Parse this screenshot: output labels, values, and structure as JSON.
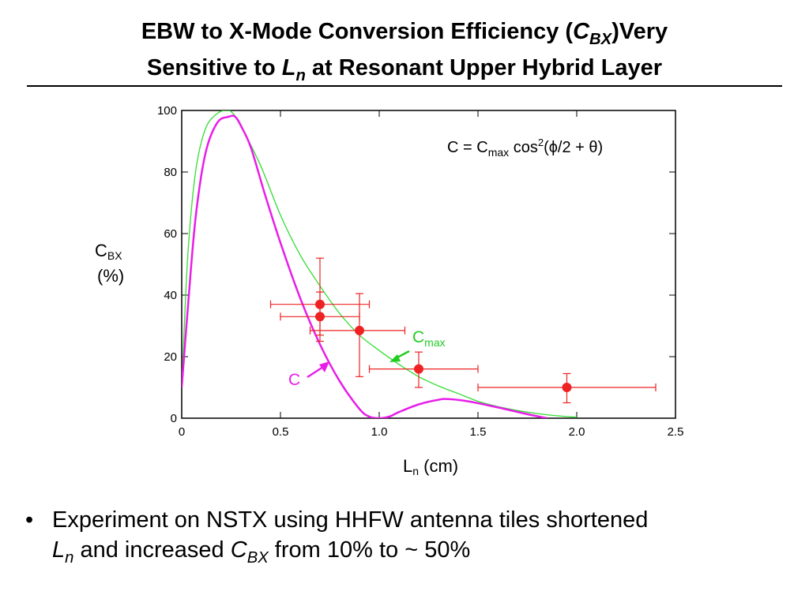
{
  "slide": {
    "title_part1": "EBW to X-Mode Conversion Efficiency (",
    "title_c": "C",
    "title_bx": "BX",
    "title_part2": ")Very",
    "title_line2_a": "Sensitive to ",
    "title_l": "L",
    "title_n": "n",
    "title_line2_b": " at Resonant Upper Hybrid Layer",
    "bullet_symbol": "•",
    "bullet_a": "Experiment on NSTX using HHFW antenna tiles shortened",
    "bullet_l": "L",
    "bullet_n": "n",
    "bullet_b": " and increased ",
    "bullet_c": "C",
    "bullet_bx": "BX",
    "bullet_c2": " from 10% to ~ 50%"
  },
  "chart_data": {
    "type": "line",
    "xlabel": "L",
    "xlabel_sub": "n",
    "xlabel_rest": " (cm)",
    "ylabel": "C",
    "ylabel_sub": "BX",
    "ylabel_line2": "(%)",
    "xlim": [
      0,
      2.5
    ],
    "ylim": [
      0,
      100
    ],
    "xticks": [
      0,
      0.5,
      1.0,
      1.5,
      2.0,
      2.5
    ],
    "xtick_labels": [
      "0",
      "0.5",
      "1.0",
      "1.5",
      "2.0",
      "2.5"
    ],
    "yticks": [
      0,
      20,
      40,
      60,
      80,
      100
    ],
    "ytick_labels": [
      "0",
      "20",
      "40",
      "60",
      "80",
      "100"
    ],
    "grid": false,
    "formula": {
      "lhs": "C = C",
      "max_sub": "max",
      "cos": " cos",
      "sup": "2",
      "rest": "(ϕ/2 + θ)"
    },
    "series": [
      {
        "name": "C",
        "label": "C",
        "color": "#e81ee8",
        "x": [
          0.0,
          0.03,
          0.07,
          0.12,
          0.18,
          0.24,
          0.27,
          0.3,
          0.35,
          0.42,
          0.5,
          0.6,
          0.7,
          0.8,
          0.9,
          0.95,
          1.0,
          1.05,
          1.1,
          1.2,
          1.3,
          1.35,
          1.45,
          1.55,
          1.65,
          1.75,
          1.85
        ],
        "y": [
          10,
          35,
          65,
          86,
          96,
          98,
          98,
          95,
          88,
          73,
          57,
          39,
          24,
          12,
          3,
          0.5,
          0,
          0.5,
          2,
          4.5,
          6,
          6.2,
          5.5,
          4.2,
          2.8,
          1.3,
          0
        ]
      },
      {
        "name": "C_max",
        "label": "C",
        "label_sub": "max",
        "color": "#33dd33",
        "x": [
          0.0,
          0.03,
          0.07,
          0.12,
          0.18,
          0.23,
          0.26,
          0.3,
          0.4,
          0.5,
          0.6,
          0.7,
          0.8,
          0.9,
          1.0,
          1.1,
          1.2,
          1.3,
          1.4,
          1.5,
          1.6,
          1.7,
          1.8,
          1.9,
          2.0
        ],
        "y": [
          10,
          52,
          80,
          94,
          99,
          100,
          99,
          95,
          82,
          66,
          53,
          43,
          34,
          27,
          22,
          17.5,
          13.5,
          10.5,
          8,
          5.5,
          3.8,
          2.5,
          1.5,
          0.8,
          0.3
        ]
      }
    ],
    "points": {
      "color": "#ee2222",
      "x": [
        0.7,
        0.7,
        0.9,
        1.2,
        1.95
      ],
      "y": [
        37,
        33,
        28.5,
        16,
        10
      ],
      "xerr_lo": [
        0.25,
        0.2,
        0.25,
        0.25,
        0.45
      ],
      "xerr_hi": [
        0.25,
        0.2,
        0.23,
        0.3,
        0.45
      ],
      "yerr_lo": [
        10,
        8,
        15,
        6,
        5
      ],
      "yerr_hi": [
        15,
        8,
        12,
        5.5,
        4.5
      ]
    }
  }
}
